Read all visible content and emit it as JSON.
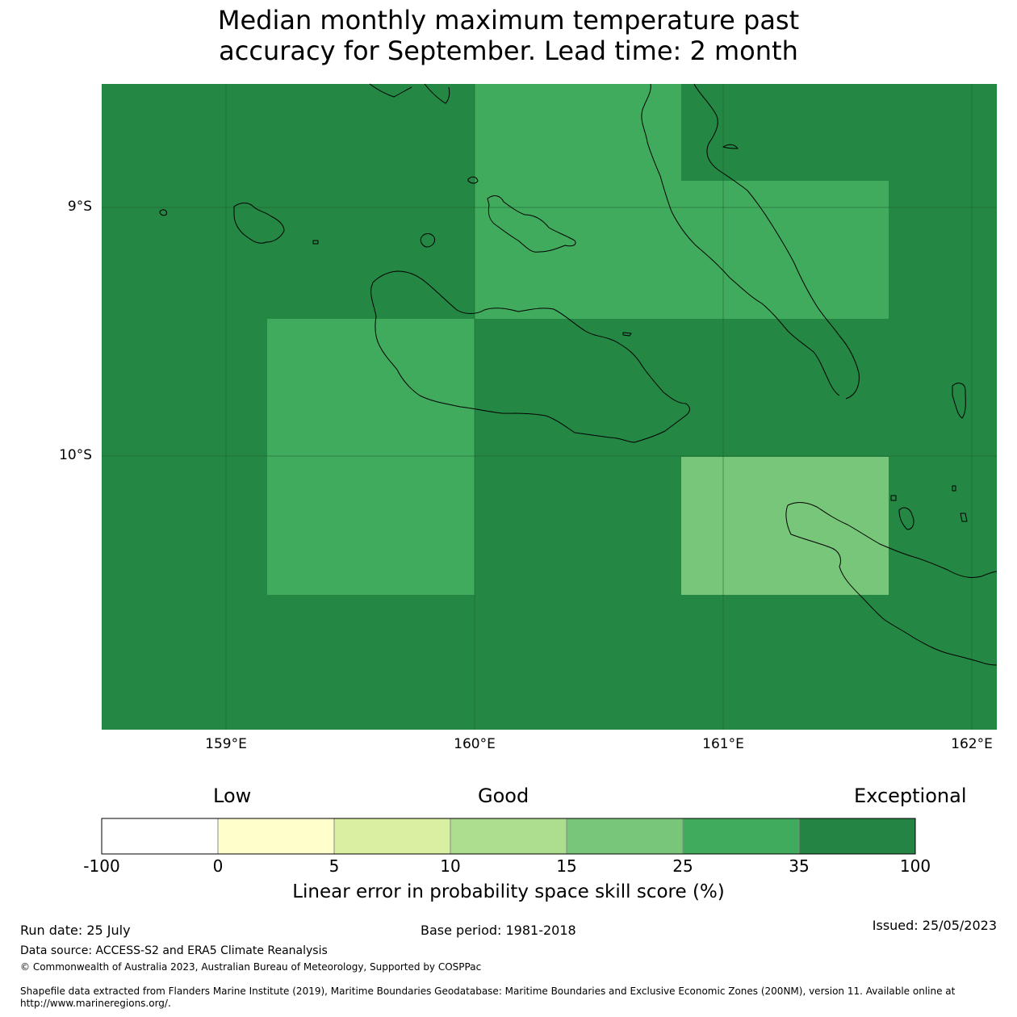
{
  "title_line1": "Median monthly maximum temperature past",
  "title_line2": "accuracy for September. Lead time: 2 month",
  "map": {
    "lat_labels": [
      "9°S",
      "10°S"
    ],
    "lon_labels": [
      "159°E",
      "160°E",
      "161°E",
      "162°E"
    ],
    "ocean_color": "#248744",
    "coast_color": "#000000"
  },
  "colorbar": {
    "categories": [
      "Low",
      "Good",
      "Exceptional"
    ],
    "ticks": [
      "-100",
      "0",
      "5",
      "10",
      "15",
      "25",
      "35",
      "100"
    ],
    "colors": [
      "#ffffff",
      "#ffffcc",
      "#d9f0a3",
      "#addd8e",
      "#78c679",
      "#41ab5d",
      "#238443"
    ],
    "label": "Linear error in probability space skill score (%)"
  },
  "footer": {
    "run_date": "Run date: 25 July",
    "base_period": "Base period: 1981-2018",
    "issued": "Issued: 25/05/2023",
    "data_source": "Data source: ACCESS-S2 and ERA5 Climate Reanalysis",
    "copyright": "© Commonwealth of Australia 2023, Australian Bureau of Meteorology, Supported by COSPPac",
    "shapefile_line1": "Shapefile data extracted from Flanders Marine Institute (2019), Maritime Boundaries Geodatabase: Maritime Boundaries and Exclusive Economic Zones (200NM), version 11. Available online at",
    "shapefile_line2": "http://www.marineregions.org/."
  }
}
